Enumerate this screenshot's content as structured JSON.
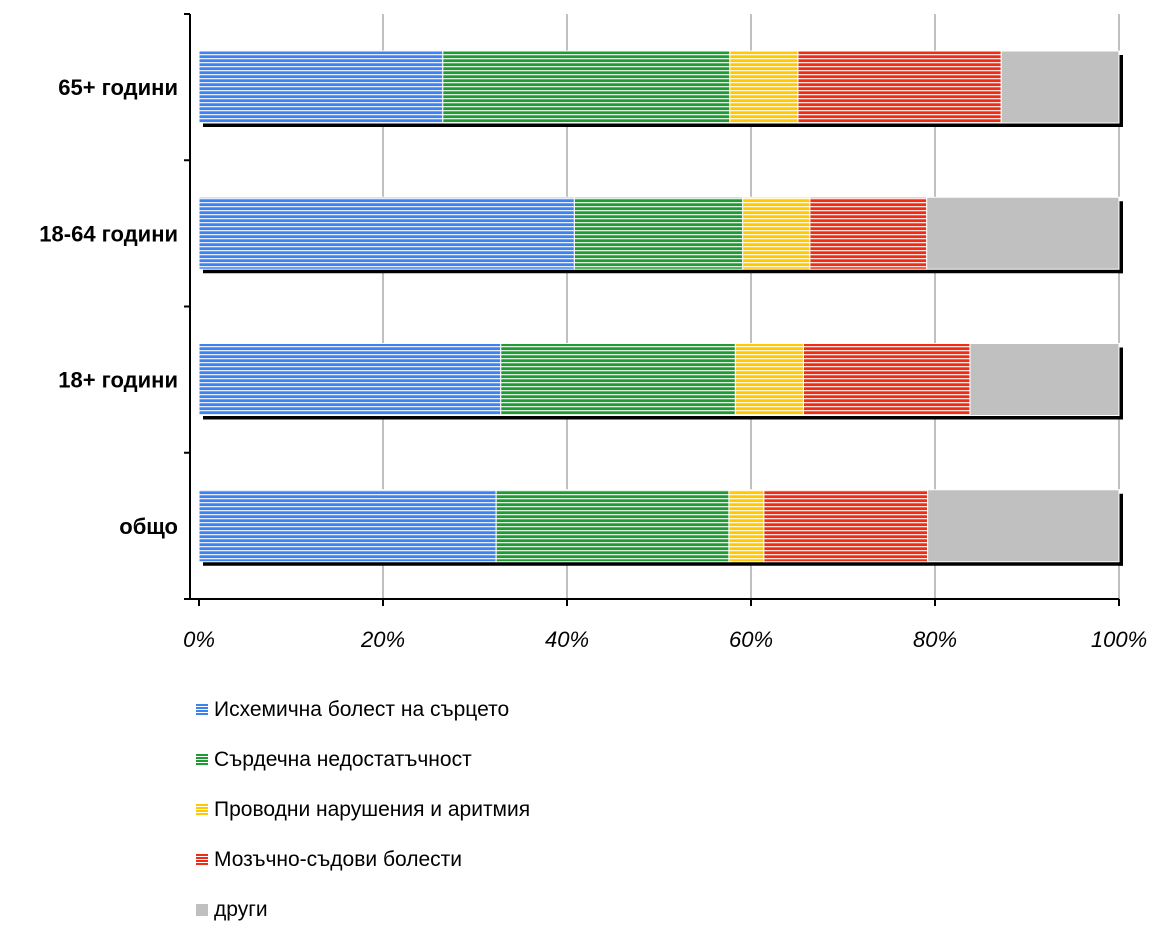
{
  "chart_data": {
    "type": "bar",
    "orientation": "horizontal",
    "stacked": "percent",
    "categories": [
      "65+ години",
      "18-64 години",
      "18+ години",
      "общо"
    ],
    "series": [
      {
        "name": "Исхемична болест на сърцето",
        "color": "#3c82f0",
        "values": [
          26.5,
          40.8,
          32.8,
          32.3
        ]
      },
      {
        "name": "Сърдечна недостатъчност",
        "color": "#1e9b32",
        "values": [
          31.2,
          18.3,
          25.5,
          25.3
        ]
      },
      {
        "name": "Проводни нарушения и аритмия",
        "color": "#ffc800",
        "values": [
          7.4,
          7.3,
          7.4,
          3.8
        ]
      },
      {
        "name": "Мозъчно-съдови болести",
        "color": "#f02d14",
        "values": [
          22.1,
          12.7,
          18.1,
          17.8
        ]
      },
      {
        "name": "други",
        "color": "#c0c0c0",
        "values": [
          12.8,
          20.9,
          16.2,
          20.8
        ]
      }
    ],
    "x_ticks": [
      "0%",
      "20%",
      "40%",
      "60%",
      "80%",
      "100%"
    ],
    "xlim": [
      0,
      100
    ],
    "grid": true,
    "legend_position": "bottom"
  }
}
